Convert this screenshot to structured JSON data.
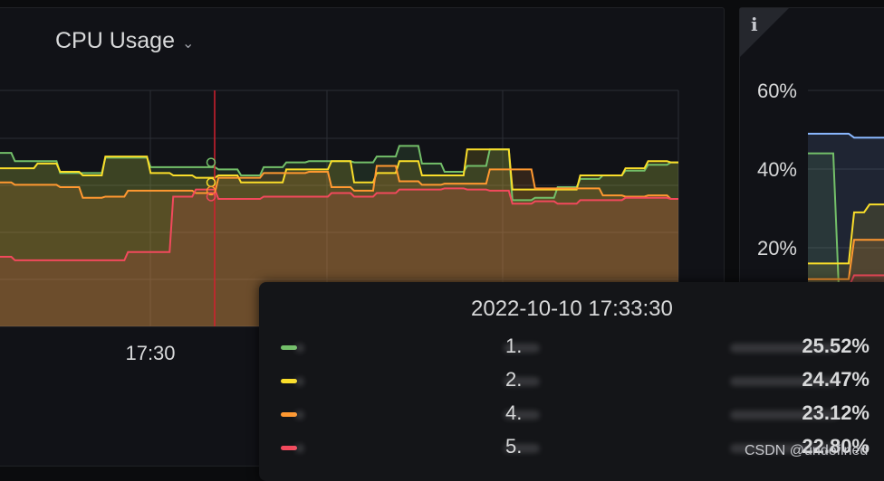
{
  "panel": {
    "title": "CPU Usage",
    "chevron_icon": "chevron-down-icon"
  },
  "side_panel": {
    "info_icon": "info-icon",
    "info_glyph": "i",
    "y_ticks": [
      "60%",
      "40%",
      "20%"
    ]
  },
  "tooltip": {
    "time": "2022-10-10 17:33:30",
    "rows": [
      {
        "name": "1.",
        "value": "25.52%",
        "color": "#73bf69"
      },
      {
        "name": "2.",
        "value": "24.47%",
        "color": "#fade2a"
      },
      {
        "name": "4.",
        "value": "23.12%",
        "color": "#ff9830"
      },
      {
        "name": "5.",
        "value": "22.80%",
        "color": "#f2495c"
      }
    ]
  },
  "watermark": "CSDN @undefined",
  "chart_data": {
    "type": "area",
    "x_tick_labels": [
      "17:30"
    ],
    "cursor_time": "17:33:30",
    "grid": true,
    "series": [
      {
        "color": "#73bf69",
        "x": [
          0,
          2,
          4,
          6,
          8,
          10,
          12,
          14,
          16,
          18,
          20,
          22,
          24,
          26,
          28,
          30,
          32,
          34,
          36,
          38,
          40,
          42,
          44,
          46,
          48,
          50,
          52,
          54,
          56,
          58,
          60
        ],
        "values": [
          26.7,
          26.0,
          26.0,
          25.0,
          25.0,
          26.3,
          26.3,
          25.5,
          25.5,
          25.5,
          25.3,
          24.8,
          25.5,
          25.9,
          26.0,
          26.0,
          25.9,
          26.4,
          27.3,
          25.8,
          25.1,
          25.6,
          27.0,
          22.7,
          22.9,
          23.8,
          24.5,
          24.8,
          25.2,
          25.7,
          25.9
        ]
      },
      {
        "color": "#fade2a",
        "x": [
          0,
          2,
          4,
          6,
          8,
          10,
          12,
          14,
          16,
          18,
          20,
          22,
          24,
          26,
          28,
          30,
          32,
          34,
          36,
          38,
          40,
          42,
          44,
          46,
          48,
          50,
          52,
          54,
          56,
          58,
          60
        ],
        "values": [
          25.4,
          25.4,
          25.8,
          25.1,
          24.8,
          26.4,
          26.4,
          25.0,
          24.8,
          24.6,
          24.8,
          24.2,
          24.2,
          25.3,
          25.3,
          26.0,
          24.2,
          25.0,
          26.0,
          24.8,
          24.8,
          27.0,
          27.0,
          23.6,
          23.6,
          23.6,
          24.8,
          24.8,
          25.4,
          26.0,
          25.9
        ]
      },
      {
        "color": "#ff9830",
        "x": [
          0,
          2,
          4,
          6,
          8,
          10,
          12,
          14,
          16,
          18,
          20,
          22,
          24,
          26,
          28,
          30,
          32,
          34,
          36,
          38,
          40,
          42,
          44,
          46,
          48,
          50,
          52,
          54,
          56,
          58,
          60
        ],
        "values": [
          24.2,
          24.0,
          24.0,
          23.8,
          22.9,
          23.0,
          23.5,
          23.5,
          23.5,
          23.3,
          24.6,
          24.6,
          25.0,
          25.0,
          25.1,
          23.8,
          23.5,
          25.6,
          24.3,
          24.0,
          24.1,
          24.1,
          25.3,
          25.3,
          23.7,
          23.7,
          23.7,
          23.1,
          23.0,
          23.1,
          22.8
        ]
      },
      {
        "color": "#f2495c",
        "x": [
          0,
          2,
          4,
          6,
          8,
          10,
          12,
          14,
          16,
          18,
          20,
          22,
          24,
          26,
          28,
          30,
          32,
          34,
          36,
          38,
          40,
          42,
          44,
          46,
          48,
          50,
          52,
          54,
          56,
          58,
          60
        ],
        "values": [
          17.9,
          17.6,
          17.6,
          17.6,
          17.6,
          17.6,
          18.3,
          18.3,
          23.0,
          23.6,
          22.8,
          22.8,
          23.0,
          23.0,
          23.0,
          23.3,
          23.0,
          23.3,
          23.6,
          23.6,
          23.7,
          23.6,
          23.5,
          22.4,
          22.6,
          22.4,
          22.7,
          22.7,
          22.9,
          22.9,
          22.8
        ]
      }
    ],
    "side_chart": {
      "y_ticks": [
        "60%",
        "40%",
        "20%"
      ],
      "series": [
        {
          "color": "#8ab8ff",
          "values": [
            49,
            49,
            49,
            48,
            48,
            48
          ]
        },
        {
          "color": "#73bf69",
          "values": [
            44,
            44,
            10,
            10,
            10,
            10
          ]
        },
        {
          "color": "#fade2a",
          "values": [
            16,
            16,
            16,
            29,
            31,
            31
          ]
        },
        {
          "color": "#ff9830",
          "values": [
            12,
            12,
            12,
            22,
            22,
            22
          ]
        },
        {
          "color": "#f2495c",
          "values": [
            10,
            10,
            10,
            13,
            13,
            13
          ]
        }
      ]
    }
  }
}
